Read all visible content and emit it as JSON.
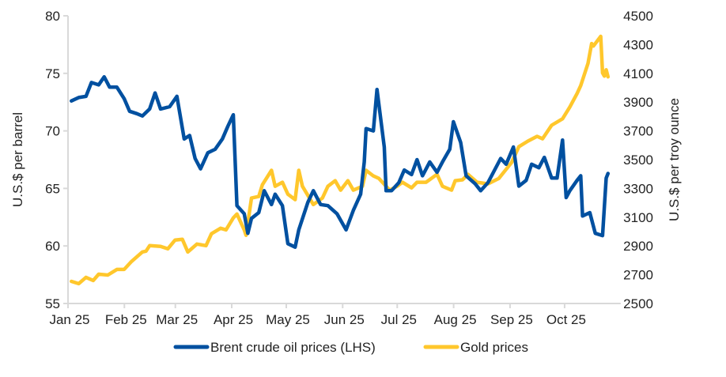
{
  "chart_data": {
    "type": "line",
    "title": "",
    "xlabel": "",
    "x_tick_labels": [
      "Jan 25",
      "Feb 25",
      "Mar 25",
      "Apr 25",
      "May 25",
      "Jun 25",
      "Jul 25",
      "Aug 25",
      "Sep 25",
      "Oct 25"
    ],
    "x_tick_dates": [
      "2025-01-01",
      "2025-02-01",
      "2025-03-01",
      "2025-04-01",
      "2025-05-01",
      "2025-06-01",
      "2025-07-01",
      "2025-08-01",
      "2025-09-01",
      "2025-10-01"
    ],
    "x_range": [
      "2025-01-01",
      "2025-10-31"
    ],
    "y_left": {
      "label": "U.S.$ per barrel",
      "range": [
        55,
        80
      ],
      "ticks": [
        55,
        60,
        65,
        70,
        75,
        80
      ]
    },
    "y_right": {
      "label": "U.S.$ per troy ounce",
      "range": [
        2500,
        4500
      ],
      "ticks": [
        2500,
        2700,
        2900,
        3100,
        3300,
        3500,
        3700,
        3900,
        4100,
        4300,
        4500
      ]
    },
    "grid": false,
    "legend_position": "bottom",
    "series": [
      {
        "name": "Brent crude oil prices (LHS)",
        "axis": "left",
        "color": "#0050a0",
        "x": [
          "2025-01-02",
          "2025-01-06",
          "2025-01-10",
          "2025-01-13",
          "2025-01-17",
          "2025-01-20",
          "2025-01-23",
          "2025-01-27",
          "2025-01-31",
          "2025-02-03",
          "2025-02-07",
          "2025-02-10",
          "2025-02-14",
          "2025-02-17",
          "2025-02-20",
          "2025-02-25",
          "2025-03-01",
          "2025-03-05",
          "2025-03-08",
          "2025-03-11",
          "2025-03-14",
          "2025-03-18",
          "2025-03-22",
          "2025-03-26",
          "2025-03-29",
          "2025-04-01",
          "2025-04-03",
          "2025-04-07",
          "2025-04-09",
          "2025-04-11",
          "2025-04-15",
          "2025-04-18",
          "2025-04-22",
          "2025-04-24",
          "2025-04-28",
          "2025-05-01",
          "2025-05-05",
          "2025-05-07",
          "2025-05-12",
          "2025-05-15",
          "2025-05-19",
          "2025-05-23",
          "2025-05-28",
          "2025-06-02",
          "2025-06-06",
          "2025-06-10",
          "2025-06-12",
          "2025-06-13",
          "2025-06-17",
          "2025-06-19",
          "2025-06-23",
          "2025-06-24",
          "2025-06-27",
          "2025-07-01",
          "2025-07-04",
          "2025-07-08",
          "2025-07-11",
          "2025-07-14",
          "2025-07-18",
          "2025-07-22",
          "2025-07-25",
          "2025-07-29",
          "2025-07-31",
          "2025-08-04",
          "2025-08-07",
          "2025-08-12",
          "2025-08-15",
          "2025-08-19",
          "2025-08-22",
          "2025-08-26",
          "2025-08-29",
          "2025-09-02",
          "2025-09-05",
          "2025-09-09",
          "2025-09-12",
          "2025-09-16",
          "2025-09-19",
          "2025-09-23",
          "2025-09-26",
          "2025-09-29",
          "2025-10-01",
          "2025-10-03",
          "2025-10-07",
          "2025-10-09",
          "2025-10-10",
          "2025-10-14",
          "2025-10-17",
          "2025-10-21",
          "2025-10-23",
          "2025-10-24"
        ],
        "values": [
          72.6,
          72.9,
          73.0,
          74.2,
          74.0,
          74.7,
          73.8,
          73.8,
          72.8,
          71.7,
          71.5,
          71.3,
          71.9,
          73.3,
          71.9,
          72.1,
          73.0,
          69.3,
          69.6,
          67.6,
          66.7,
          68.1,
          68.4,
          69.3,
          70.4,
          71.4,
          63.5,
          62.8,
          61.1,
          62.4,
          62.9,
          64.8,
          63.6,
          64.5,
          63.5,
          60.2,
          59.9,
          61.4,
          63.8,
          64.8,
          63.6,
          63.5,
          62.8,
          61.4,
          63.1,
          64.5,
          67.3,
          70.2,
          70.0,
          73.6,
          68.6,
          64.8,
          64.8,
          65.5,
          66.6,
          66.2,
          67.5,
          66.1,
          67.3,
          66.4,
          67.3,
          68.4,
          70.8,
          69.0,
          66.1,
          65.4,
          64.8,
          65.5,
          66.4,
          67.6,
          67.1,
          68.6,
          65.2,
          65.7,
          67.1,
          66.8,
          67.7,
          65.9,
          65.9,
          69.2,
          64.2,
          64.8,
          65.7,
          66.1,
          62.6,
          62.9,
          61.1,
          60.9,
          65.9,
          66.3
        ]
      },
      {
        "name": "Gold prices",
        "axis": "right",
        "color": "#ffc72c",
        "x": [
          "2025-01-02",
          "2025-01-06",
          "2025-01-10",
          "2025-01-14",
          "2025-01-17",
          "2025-01-22",
          "2025-01-27",
          "2025-01-31",
          "2025-02-04",
          "2025-02-10",
          "2025-02-12",
          "2025-02-14",
          "2025-02-20",
          "2025-02-24",
          "2025-02-28",
          "2025-03-04",
          "2025-03-07",
          "2025-03-12",
          "2025-03-17",
          "2025-03-20",
          "2025-03-25",
          "2025-03-28",
          "2025-04-01",
          "2025-04-03",
          "2025-04-07",
          "2025-04-08",
          "2025-04-11",
          "2025-04-15",
          "2025-04-17",
          "2025-04-22",
          "2025-04-24",
          "2025-04-28",
          "2025-05-01",
          "2025-05-05",
          "2025-05-07",
          "2025-05-09",
          "2025-05-15",
          "2025-05-20",
          "2025-05-23",
          "2025-05-27",
          "2025-05-30",
          "2025-06-03",
          "2025-06-06",
          "2025-06-11",
          "2025-06-13",
          "2025-06-17",
          "2025-06-20",
          "2025-06-26",
          "2025-06-30",
          "2025-07-03",
          "2025-07-08",
          "2025-07-11",
          "2025-07-16",
          "2025-07-22",
          "2025-07-25",
          "2025-07-30",
          "2025-08-01",
          "2025-08-05",
          "2025-08-08",
          "2025-08-13",
          "2025-08-19",
          "2025-08-25",
          "2025-09-01",
          "2025-09-05",
          "2025-09-10",
          "2025-09-15",
          "2025-09-18",
          "2025-09-23",
          "2025-09-29",
          "2025-10-03",
          "2025-10-07",
          "2025-10-09",
          "2025-10-13",
          "2025-10-15",
          "2025-10-16",
          "2025-10-20",
          "2025-10-21",
          "2025-10-22",
          "2025-10-23",
          "2025-10-24"
        ],
        "values": [
          2654,
          2638,
          2682,
          2660,
          2704,
          2698,
          2737,
          2737,
          2792,
          2858,
          2864,
          2902,
          2897,
          2880,
          2941,
          2946,
          2858,
          2913,
          2902,
          2985,
          3023,
          3012,
          3095,
          3122,
          3012,
          2974,
          3233,
          3244,
          3326,
          3426,
          3315,
          3343,
          3260,
          3222,
          3426,
          3315,
          3188,
          3233,
          3315,
          3354,
          3288,
          3354,
          3288,
          3315,
          3426,
          3387,
          3370,
          3288,
          3315,
          3343,
          3304,
          3343,
          3343,
          3398,
          3315,
          3288,
          3354,
          3360,
          3398,
          3343,
          3332,
          3370,
          3480,
          3590,
          3629,
          3662,
          3645,
          3739,
          3784,
          3866,
          3960,
          4015,
          4169,
          4307,
          4290,
          4357,
          4103,
          4081,
          4125,
          4076
        ]
      }
    ]
  }
}
